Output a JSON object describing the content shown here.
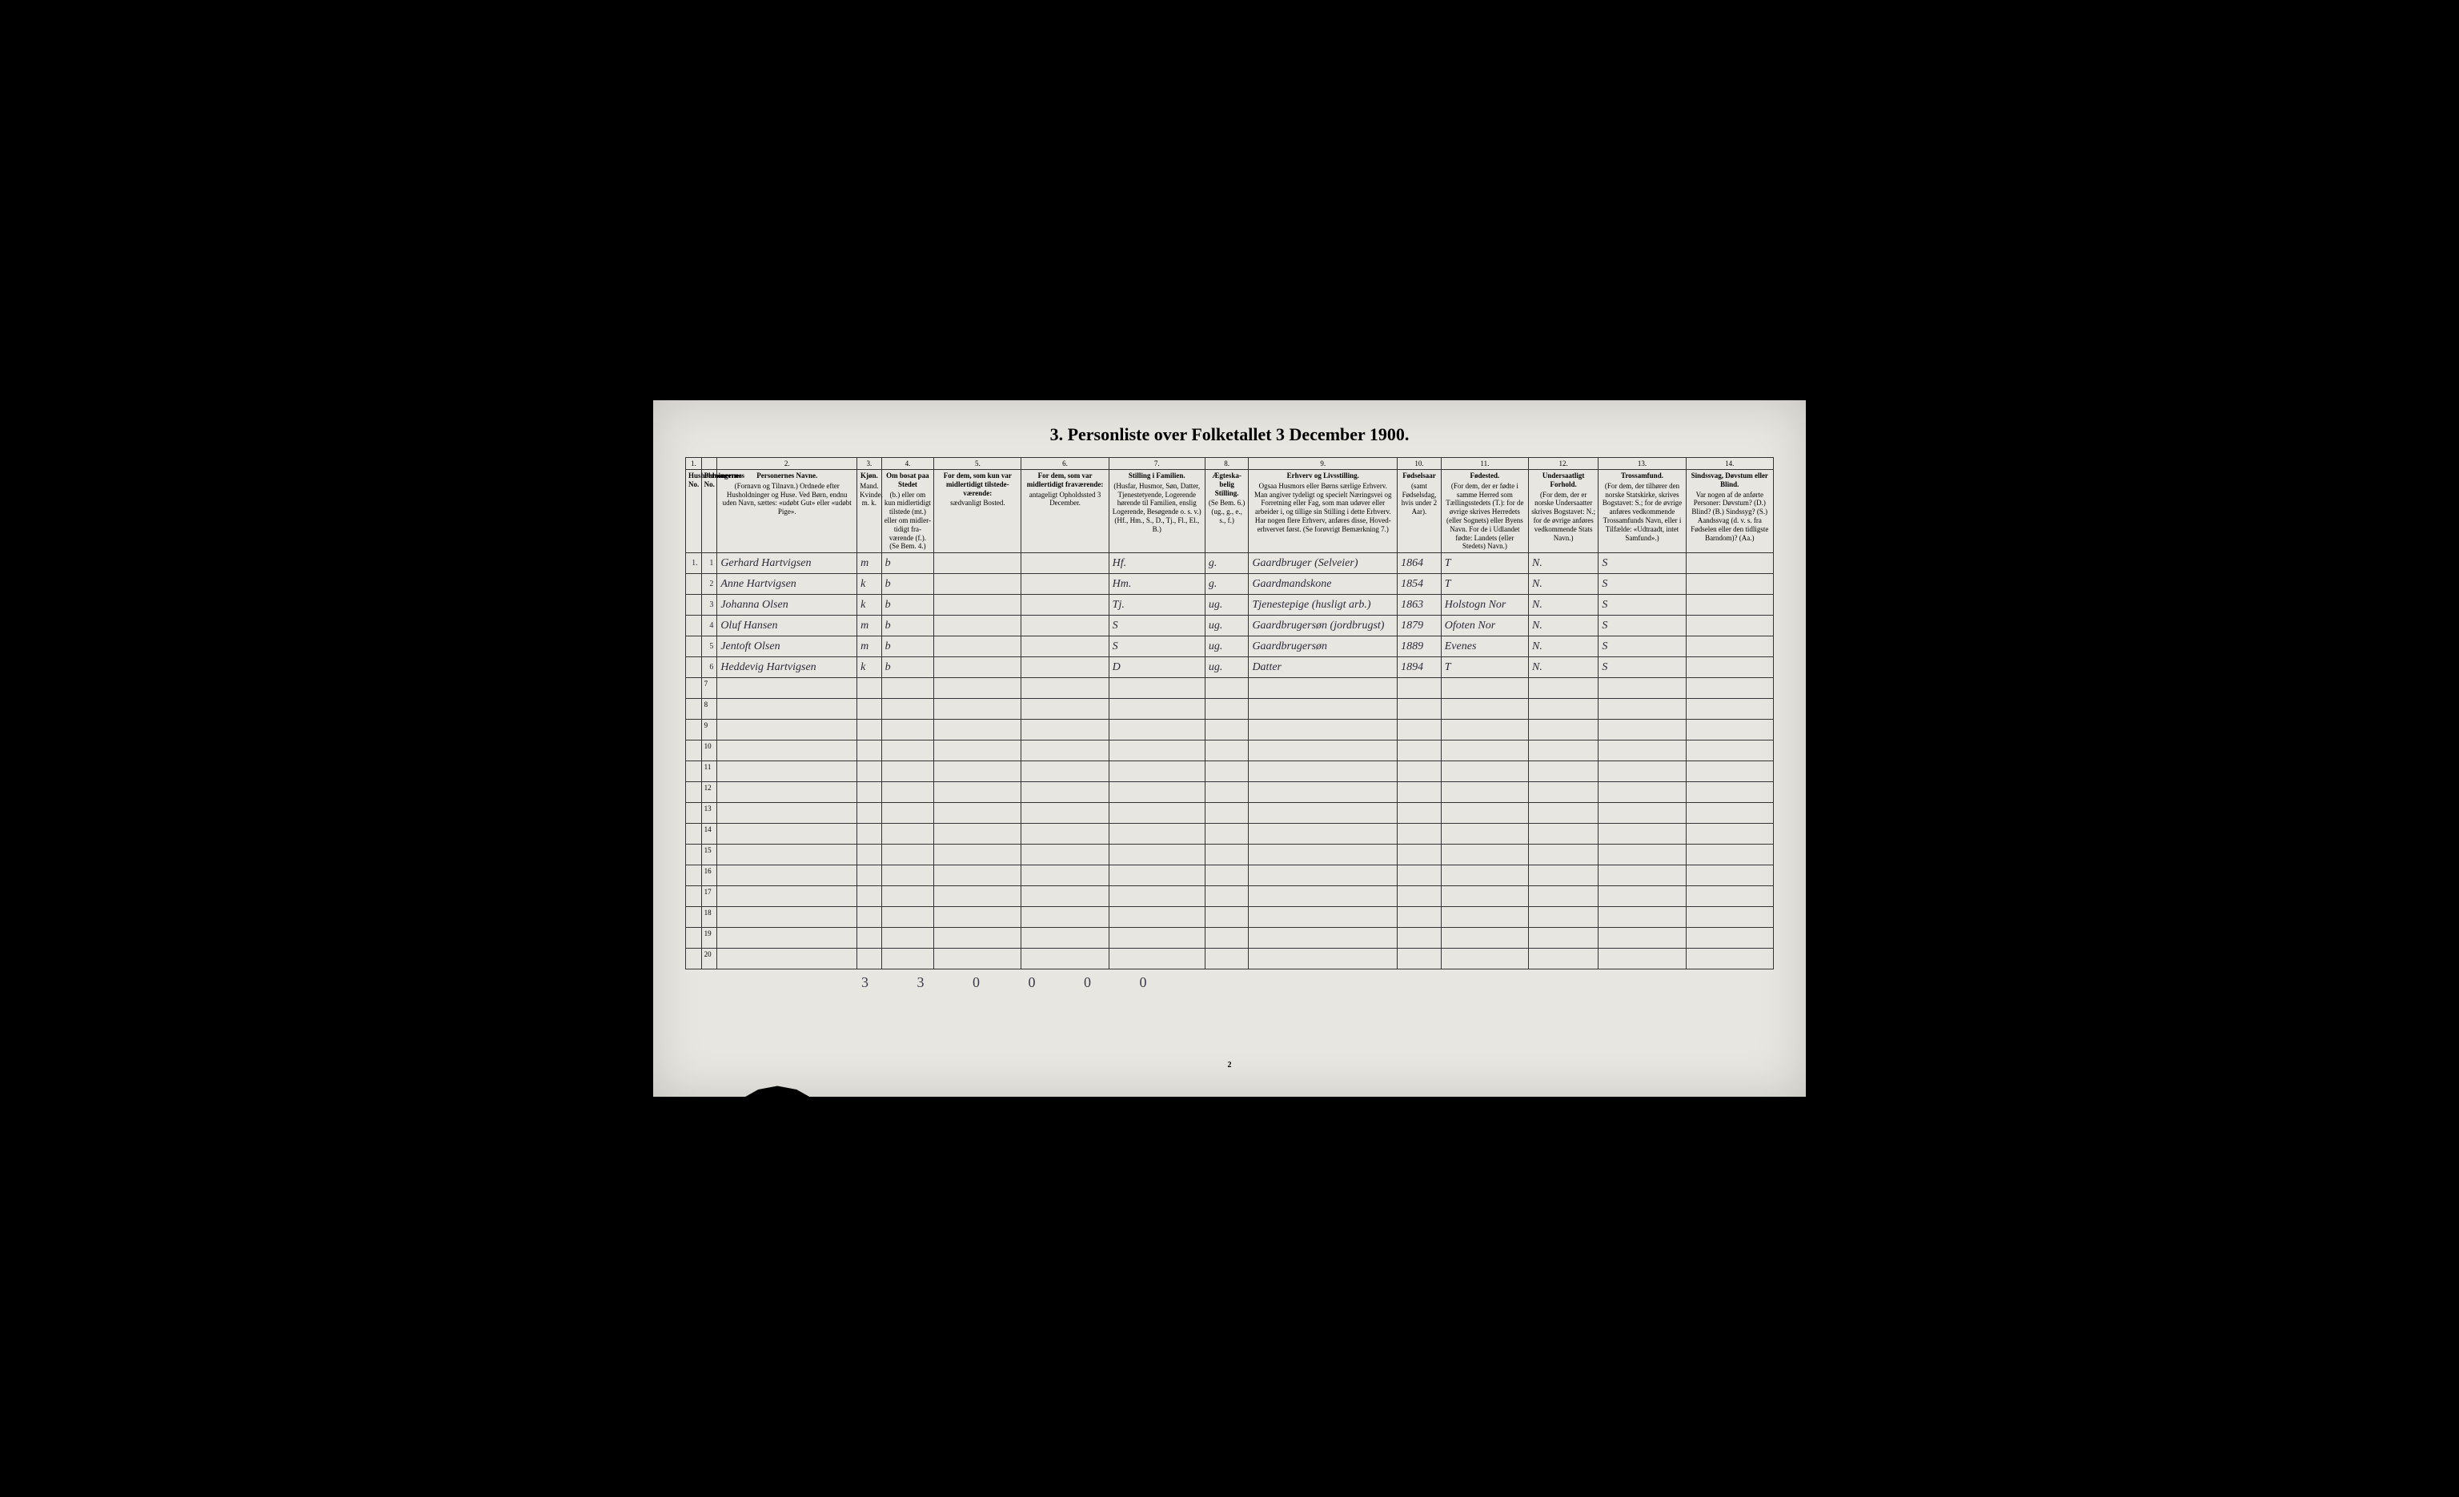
{
  "title": "3. Personliste over Folketallet 3 December 1900.",
  "page_number": "2",
  "bottom_tally": "3 3 0 0 0 0",
  "columns": {
    "nums": [
      "1.",
      "",
      "2.",
      "3.",
      "4.",
      "5.",
      "6.",
      "7.",
      "8.",
      "9.",
      "10.",
      "11.",
      "12.",
      "13.",
      "14."
    ],
    "widths": [
      18,
      18,
      160,
      28,
      60,
      100,
      100,
      110,
      50,
      170,
      50,
      100,
      80,
      100,
      100
    ],
    "headers": [
      {
        "title": "Husholdningernes No."
      },
      {
        "title": "Personernes No."
      },
      {
        "title": "Personernes Navne.",
        "sub": "(Fornavn og Tilnavn.) Ordnede efter Husholdninger og Huse. Ved Børn, endnu uden Navn, sættes: «udøbt Gut» eller «udøbt Pige»."
      },
      {
        "title": "Kjøn.",
        "sub": "Mand. Kvinde. m. k."
      },
      {
        "title": "Om bosat paa Stedet",
        "sub": "(b.) eller om kun midlerti­digt tilstede (mt.) eller om midler­tidigt fra­værende (f.). (Se Bem. 4.)"
      },
      {
        "title": "For dem, som kun var midlertidigt tilstede­værende:",
        "sub": "sædvanligt Bosted."
      },
      {
        "title": "For dem, som var midlertidigt fraværende:",
        "sub": "antageligt Opholdssted 3 December."
      },
      {
        "title": "Stilling i Familien.",
        "sub": "(Husfar, Husmor, Søn, Datter, Tjenestetyende, Lo­gerende hørende til Familien, enslig Logerende, Besøgende o. s. v.) (Hf., Hm., S., D., Tj., Fl., El., B.)"
      },
      {
        "title": "Ægteska­belig Stilling.",
        "sub": "(Se Bem. 6.) (ug., g., e., s., f.)"
      },
      {
        "title": "Erhverv og Livsstilling.",
        "sub": "Ogsaa Husmors eller Børns særlige Erhverv. Man angiver tydeligt og specielt Næringsvei og For­retning eller Fag, som man udøver eller arbeider i, og tillige sin Stilling i dette Erhverv. Har nogen flere Erhverv, anføres disse, Hoved­erhvervet først. (Se forøvrigt Bemærkning 7.)"
      },
      {
        "title": "Fødsels­aar",
        "sub": "(samt Fødsels­dag, hvis under 2 Aar)."
      },
      {
        "title": "Fødested.",
        "sub": "(For dem, der er fødte i samme Herred som Tællingsstedets (T.): for de øvrige skrives Herredets (eller Sognets) eller Byens Navn. For de i Udlandet fødte: Landets (eller Stedets) Navn.)"
      },
      {
        "title": "Undersaatligt Forhold.",
        "sub": "(For dem, der er norske Undersaatter skrives Bogstavet: N.; for de øvrige anføres vedkom­mende Stats Navn.)"
      },
      {
        "title": "Trossamfund.",
        "sub": "(For dem, der tilhører den norske Statskirke, skrives Bogstavet: S.; for de øvrige anføres vedkommende Trossam­funds Navn, eller i Til­fælde: «Udtraadt, intet Samfund».)"
      },
      {
        "title": "Sindssvag, Døvstum eller Blind.",
        "sub": "Var nogen af de anførte Personer: Døvstum? (D.) Blind? (B.) Sindssyg? (S.) Aandssvag (d. v. s. fra Fødselen eller den tid­ligste Barndom)? (Aa.)"
      }
    ]
  },
  "rows": [
    {
      "hh": "1.",
      "pn": "1",
      "name": "Gerhard Hartvigsen",
      "sex": "m",
      "res": "b",
      "temp1": "",
      "temp2": "",
      "fam": "Hf.",
      "mar": "g.",
      "occ": "Gaardbruger (Selveier)",
      "year": "1864",
      "birth": "T",
      "nat": "N.",
      "rel": "S",
      "dis": ""
    },
    {
      "hh": "",
      "pn": "2",
      "name": "Anne Hartvigsen",
      "sex": "k",
      "res": "b",
      "temp1": "",
      "temp2": "",
      "fam": "Hm.",
      "mar": "g.",
      "occ": "Gaardmandskone",
      "year": "1854",
      "birth": "T",
      "nat": "N.",
      "rel": "S",
      "dis": ""
    },
    {
      "hh": "",
      "pn": "3",
      "name": "Johanna Olsen",
      "sex": "k",
      "res": "b",
      "temp1": "",
      "temp2": "",
      "fam": "Tj.",
      "mar": "ug.",
      "occ": "Tjenestepige (husligt arb.)",
      "year": "1863",
      "birth": "Holstogn Nor",
      "nat": "N.",
      "rel": "S",
      "dis": ""
    },
    {
      "hh": "",
      "pn": "4",
      "name": "Oluf Hansen",
      "sex": "m",
      "res": "b",
      "temp1": "",
      "temp2": "",
      "fam": "S",
      "mar": "ug.",
      "occ": "Gaardbrugersøn (jordbrugst)",
      "year": "1879",
      "birth": "Ofoten Nor",
      "nat": "N.",
      "rel": "S",
      "dis": ""
    },
    {
      "hh": "",
      "pn": "5",
      "name": "Jentoft Olsen",
      "sex": "m",
      "res": "b",
      "temp1": "",
      "temp2": "",
      "fam": "S",
      "mar": "ug.",
      "occ": "Gaardbrugersøn",
      "year": "1889",
      "birth": "Evenes",
      "nat": "N.",
      "rel": "S",
      "dis": ""
    },
    {
      "hh": "",
      "pn": "6",
      "name": "Heddevig Hartvigsen",
      "sex": "k",
      "res": "b",
      "temp1": "",
      "temp2": "",
      "fam": "D",
      "mar": "ug.",
      "occ": "Datter",
      "year": "1894",
      "birth": "T",
      "nat": "N.",
      "rel": "S",
      "dis": ""
    }
  ],
  "empty_rows": [
    7,
    8,
    9,
    10,
    11,
    12,
    13,
    14,
    15,
    16,
    17,
    18,
    19,
    20
  ],
  "colors": {
    "paper": "#e8e6e0",
    "ink": "#2a2a3a",
    "border": "#333333",
    "black_frame": "#000000"
  }
}
